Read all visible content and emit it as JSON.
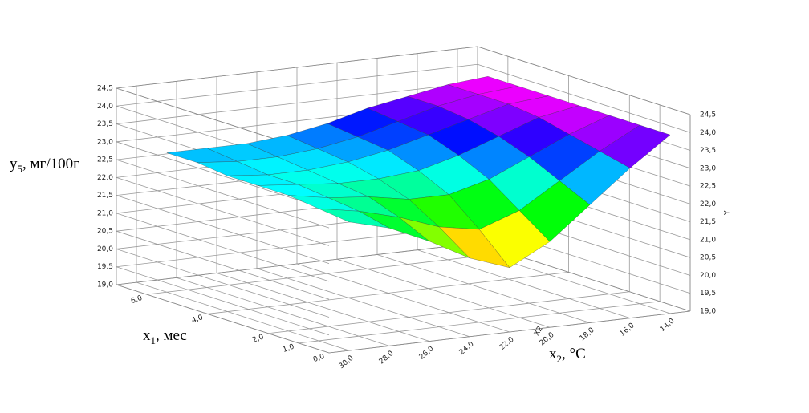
{
  "chart_data": {
    "type": "surface3d",
    "z_label": {
      "base": "y",
      "sub": "5",
      "rest": ", мг/100г"
    },
    "x1_label": {
      "base": "x",
      "sub": "1",
      "rest": ", мес"
    },
    "x2_label": {
      "base": "x",
      "sub": "2",
      "rest": ", °C"
    },
    "x2_axis_name": "X2",
    "z_axis_name": "Y",
    "x1lim": [
      0,
      7
    ],
    "x2lim": [
      13,
      31
    ],
    "zlim": [
      19,
      24.5
    ],
    "x1ticks": [
      {
        "value": 0,
        "label": "0,0"
      },
      {
        "value": 1,
        "label": "1,0"
      },
      {
        "value": 2,
        "label": "2,0"
      },
      {
        "value": 4,
        "label": "4,0"
      },
      {
        "value": 6,
        "label": "6,0"
      }
    ],
    "x2ticks": [
      {
        "value": 30,
        "label": "30,0"
      },
      {
        "value": 28,
        "label": "28,0"
      },
      {
        "value": 26,
        "label": "26,0"
      },
      {
        "value": 24,
        "label": "24,0"
      },
      {
        "value": 22,
        "label": "22,0"
      },
      {
        "value": 20,
        "label": "20,0"
      },
      {
        "value": 18,
        "label": "18,0"
      },
      {
        "value": 16,
        "label": "16,0"
      },
      {
        "value": 14,
        "label": "14,0"
      }
    ],
    "zticks": [
      {
        "value": 19,
        "label": "19,0"
      },
      {
        "value": 19.5,
        "label": "19,5"
      },
      {
        "value": 20,
        "label": "20,0"
      },
      {
        "value": 20.5,
        "label": "20,5"
      },
      {
        "value": 21,
        "label": "21,0"
      },
      {
        "value": 21.5,
        "label": "21,5"
      },
      {
        "value": 22,
        "label": "22,0"
      },
      {
        "value": 22.5,
        "label": "22,5"
      },
      {
        "value": 23,
        "label": "23,0"
      },
      {
        "value": 23.5,
        "label": "23,5"
      },
      {
        "value": 24,
        "label": "24,0"
      },
      {
        "value": 24.5,
        "label": "24,5"
      }
    ],
    "x1": [
      0,
      1,
      2,
      3,
      4,
      5,
      6
    ],
    "x2": [
      14,
      16,
      18,
      20,
      22,
      24,
      26,
      28,
      30
    ],
    "z": [
      [
        24.0,
        23.2,
        22.3,
        21.4,
        20.8,
        21.2,
        21.8,
        22.3,
        22.6
      ],
      [
        24.0,
        23.4,
        22.7,
        22.0,
        21.6,
        21.8,
        22.2,
        22.5,
        22.7
      ],
      [
        24.0,
        23.6,
        23.1,
        22.6,
        22.3,
        22.3,
        22.5,
        22.6,
        22.8
      ],
      [
        24.0,
        23.8,
        23.4,
        23.0,
        22.7,
        22.6,
        22.6,
        22.7,
        22.8
      ],
      [
        24.0,
        23.9,
        23.6,
        23.3,
        23.0,
        22.8,
        22.7,
        22.7,
        22.8
      ],
      [
        24.0,
        23.9,
        23.7,
        23.4,
        23.1,
        22.9,
        22.8,
        22.8,
        22.9
      ],
      [
        24.0,
        23.9,
        23.7,
        23.5,
        23.2,
        23.0,
        22.9,
        22.9,
        22.9
      ]
    ]
  }
}
